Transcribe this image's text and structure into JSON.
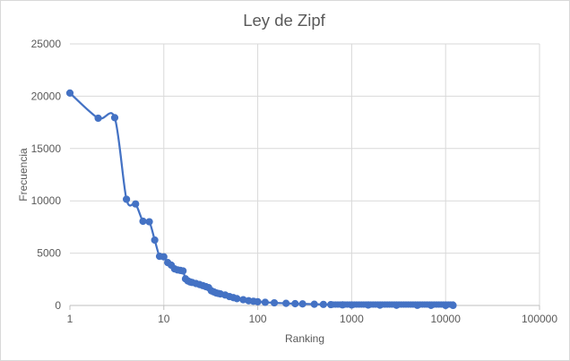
{
  "chart_data": {
    "type": "line",
    "title": "Ley de Zipf",
    "xlabel": "Ranking",
    "ylabel": "Frecuencia",
    "x_scale": "log",
    "xlim": [
      1,
      100000
    ],
    "ylim": [
      0,
      25000
    ],
    "x_ticks": [
      "1",
      "10",
      "100",
      "1000",
      "10000",
      "100000"
    ],
    "y_ticks": [
      "0",
      "5000",
      "10000",
      "15000",
      "20000",
      "25000"
    ],
    "grid": true,
    "legend": "none",
    "color": "#4472c4",
    "series": [
      {
        "x": [
          1,
          2,
          3,
          4,
          5,
          6,
          7,
          8,
          9,
          10,
          11,
          12,
          13,
          14,
          15,
          16,
          17,
          18,
          19,
          20,
          22,
          24,
          26,
          28,
          30,
          32,
          34,
          36,
          38,
          40,
          45,
          50,
          55,
          60,
          70,
          80,
          90,
          100,
          120,
          150,
          200,
          250,
          300,
          400,
          500,
          600,
          800,
          1000,
          1500,
          2000,
          3000,
          5000,
          7000,
          10000,
          12000
        ],
        "y": [
          20300,
          17900,
          17950,
          10150,
          9700,
          8050,
          8000,
          6250,
          4700,
          4650,
          4100,
          3850,
          3500,
          3400,
          3350,
          3300,
          2550,
          2350,
          2250,
          2200,
          2100,
          2000,
          1900,
          1800,
          1700,
          1400,
          1300,
          1200,
          1150,
          1100,
          1000,
          850,
          750,
          650,
          550,
          450,
          400,
          350,
          300,
          250,
          200,
          170,
          150,
          120,
          100,
          80,
          60,
          50,
          40,
          30,
          20,
          15,
          10,
          5,
          3
        ]
      }
    ]
  }
}
